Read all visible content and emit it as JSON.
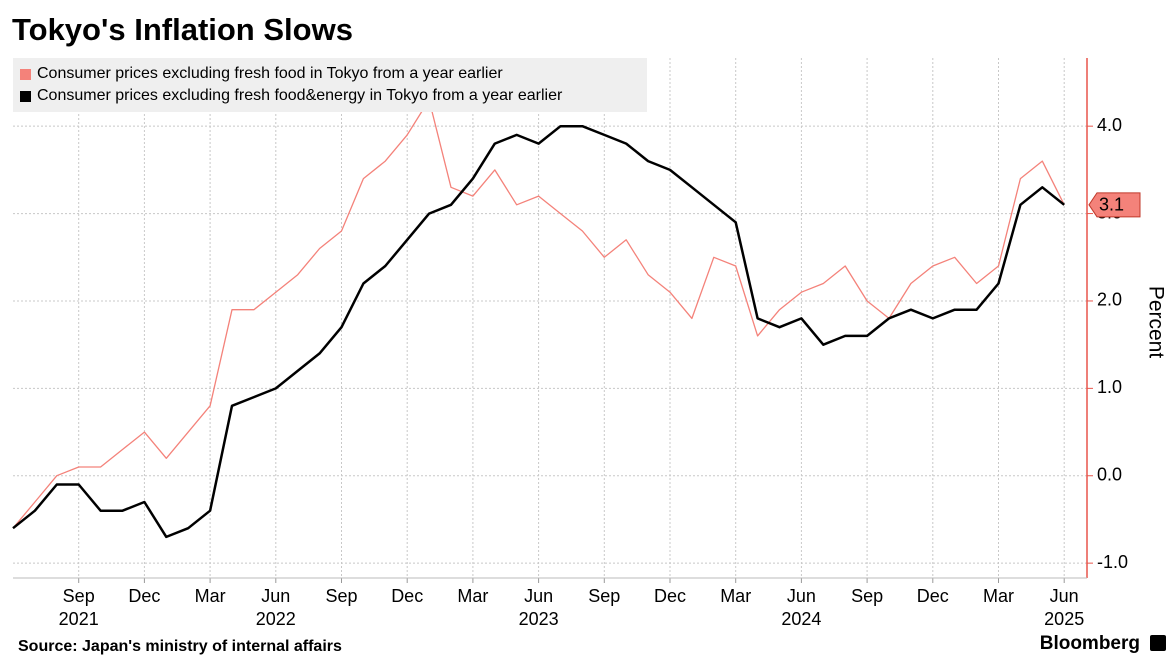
{
  "chart_data": {
    "type": "line",
    "title": "Tokyo's Inflation Slows",
    "source": "Source: Japan's ministry of internal affairs",
    "brand": "Bloomberg",
    "y_label": "Percent",
    "categories": [
      null,
      null,
      null,
      "Sep",
      null,
      null,
      "Dec",
      null,
      null,
      "Mar",
      null,
      null,
      "Jun",
      null,
      null,
      "Sep",
      null,
      null,
      "Dec",
      null,
      null,
      "Mar",
      null,
      null,
      "Jun",
      null,
      null,
      "Sep",
      null,
      null,
      "Dec",
      null,
      null,
      "Mar",
      null,
      null,
      "Jun",
      null,
      null,
      "Sep",
      null,
      null,
      "Dec",
      null,
      null,
      "Mar",
      null,
      null,
      "Jun"
    ],
    "years": [
      null,
      null,
      null,
      "2021",
      null,
      null,
      null,
      null,
      null,
      null,
      null,
      null,
      "2022",
      null,
      null,
      null,
      null,
      null,
      null,
      null,
      null,
      null,
      null,
      null,
      "2023",
      null,
      null,
      null,
      null,
      null,
      null,
      null,
      null,
      null,
      null,
      null,
      "2024",
      null,
      null,
      null,
      null,
      null,
      null,
      null,
      null,
      null,
      null,
      null,
      "2025"
    ],
    "series": [
      {
        "name": "Consumer prices excluding fresh food in Tokyo from a year earlier",
        "color": "#f4827a",
        "values": [
          -0.6,
          -0.3,
          0.0,
          0.1,
          0.1,
          0.3,
          0.5,
          0.2,
          0.5,
          0.8,
          1.9,
          1.9,
          2.1,
          2.3,
          2.6,
          2.8,
          3.4,
          3.6,
          3.9,
          4.3,
          3.3,
          3.2,
          3.5,
          3.1,
          3.2,
          3.0,
          2.8,
          2.5,
          2.7,
          2.3,
          2.1,
          1.8,
          2.5,
          2.4,
          1.6,
          1.9,
          2.1,
          2.2,
          2.4,
          2.0,
          1.8,
          2.2,
          2.4,
          2.5,
          2.2,
          2.4,
          3.4,
          3.6,
          3.1
        ]
      },
      {
        "name": "Consumer prices excluding fresh food&energy in Tokyo from a year earlier",
        "color": "#000000",
        "values": [
          -0.6,
          -0.4,
          -0.1,
          -0.1,
          -0.4,
          -0.4,
          -0.3,
          -0.7,
          -0.6,
          -0.4,
          0.8,
          0.9,
          1.0,
          1.2,
          1.4,
          1.7,
          2.2,
          2.4,
          2.7,
          3.0,
          3.1,
          3.4,
          3.8,
          3.9,
          3.8,
          4.0,
          4.0,
          3.9,
          3.8,
          3.6,
          3.5,
          3.3,
          3.1,
          2.9,
          1.8,
          1.7,
          1.8,
          1.5,
          1.6,
          1.6,
          1.8,
          1.9,
          1.8,
          1.9,
          1.9,
          2.2,
          3.1,
          3.3,
          3.1
        ]
      }
    ],
    "ylim": [
      -1.17,
      4.78
    ],
    "yticks": [
      {
        "value": -1,
        "label": "-1.0"
      },
      {
        "value": 0,
        "label": "0.0"
      },
      {
        "value": 1,
        "label": "1.0"
      },
      {
        "value": 2,
        "label": "2.0"
      },
      {
        "value": 3,
        "label": "3.0"
      },
      {
        "value": 4,
        "label": "4.0"
      }
    ],
    "grid": true,
    "legend": "top-left",
    "last_value_series": 0
  }
}
